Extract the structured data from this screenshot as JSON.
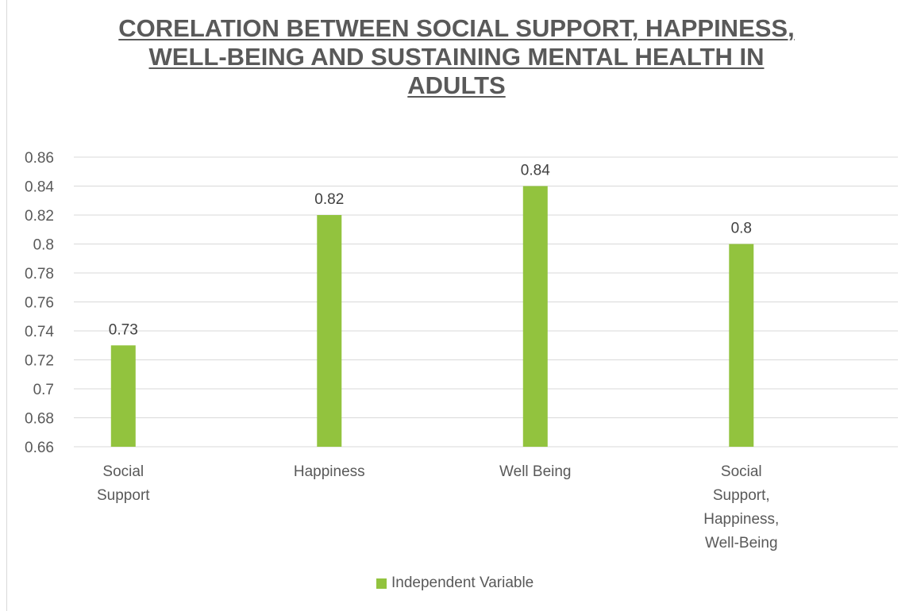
{
  "chart_data": {
    "type": "bar",
    "title_lines": [
      "CORELATION BETWEEN SOCIAL SUPPORT, HAPPINESS,",
      "WELL-BEING AND SUSTAINING MENTAL HEALTH IN",
      "ADULTS"
    ],
    "categories": [
      [
        "Social",
        "Support"
      ],
      [
        "Happiness"
      ],
      [
        "Well Being"
      ],
      [
        "Social",
        "Support,",
        "Happiness,",
        "Well-Being"
      ]
    ],
    "series": [
      {
        "name": "Independent Variable",
        "values": [
          0.73,
          0.82,
          0.84,
          0.8
        ],
        "color": "#92c33e"
      }
    ],
    "data_labels": [
      "0.73",
      "0.82",
      "0.84",
      "0.8"
    ],
    "y_ticks": [
      "0.66",
      "0.68",
      "0.7",
      "0.72",
      "0.74",
      "0.76",
      "0.78",
      "0.8",
      "0.82",
      "0.84",
      "0.86"
    ],
    "ylim": [
      0.66,
      0.86
    ],
    "grid": true,
    "legend_position": "bottom"
  }
}
